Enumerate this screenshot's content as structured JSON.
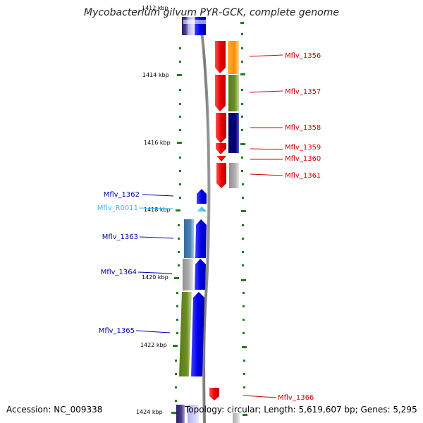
{
  "title": "Mycobacterium gilvum PYR-GCK, complete genome",
  "footer": {
    "accession_label": "Accession:",
    "accession": "NC_009338",
    "topology_label": "Topology:",
    "topology": "circular;",
    "length_label": "Length:",
    "length": "5,619,607 bp;",
    "genes_label": "Genes:",
    "genes": "5,295"
  },
  "colors": {
    "forward_label": "#cc0000",
    "reverse_label": "#0000aa",
    "rna_label": "#33bbee",
    "tick": "#1a7f1a",
    "backbone": "#8c8c8c"
  },
  "position_labels": [
    "1412 kbp",
    "1414 kbp",
    "1416 kbp",
    "1418 kbp",
    "1420 kbp",
    "1422 kbp",
    "1424 kbp"
  ],
  "genes_forward": [
    {
      "name": "Mflv_1356",
      "color": "#ee0000"
    },
    {
      "name": "Mflv_1357",
      "color": "#ee0000"
    },
    {
      "name": "Mflv_1358",
      "color": "#ee0000"
    },
    {
      "name": "Mflv_1359",
      "color": "#ee0000"
    },
    {
      "name": "Mflv_1360",
      "color": "#ee0000"
    },
    {
      "name": "Mflv_1361",
      "color": "#ee0000"
    },
    {
      "name": "Mflv_1366",
      "color": "#ee0000"
    }
  ],
  "genes_reverse": [
    {
      "name": "Mflv_1362",
      "color": "#0000ee"
    },
    {
      "name": "Mflv_R0011",
      "color": "#33bbee"
    },
    {
      "name": "Mflv_1363",
      "color": "#0000ee"
    },
    {
      "name": "Mflv_1364",
      "color": "#0000ee"
    },
    {
      "name": "Mflv_1365",
      "color": "#0000ee"
    }
  ],
  "cog_colors": {
    "orange": "#ff8c00",
    "olive": "#6b8e23",
    "navy": "#000080",
    "gray": "#a9a9a9",
    "steelblue": "#4682b4",
    "slate": "#483d8b",
    "lightblue": "#c8c8ff"
  }
}
